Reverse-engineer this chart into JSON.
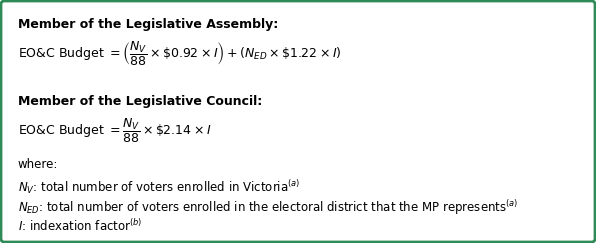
{
  "title_la": "Member of the Legislative Assembly:",
  "title_lc": "Member of the Legislative Council:",
  "formula_la": "EO&C Budget $= \\left(\\dfrac{N_V}{88} \\times \\$0.92 \\times I\\right) + \\left(N_{ED} \\times \\$1.22 \\times I\\right)$",
  "formula_lc": "EO&C Budget $= \\dfrac{N_V}{88} \\times \\$2.14 \\times I$",
  "where": "where:",
  "def_nv": "$N_V$: total number of voters enrolled in Victoria$^{(a)}$",
  "def_ned": "$N_{ED}$: total number of voters enrolled in the electoral district that the MP represents$^{(a)}$",
  "def_i": "$I$: indexation factor$^{(b)}$",
  "border_color": "#2e8b57",
  "bg_color": "#ffffff",
  "text_color": "#000000",
  "font_size_body": 8.5,
  "font_size_title": 9.0,
  "font_size_formula": 9.0
}
